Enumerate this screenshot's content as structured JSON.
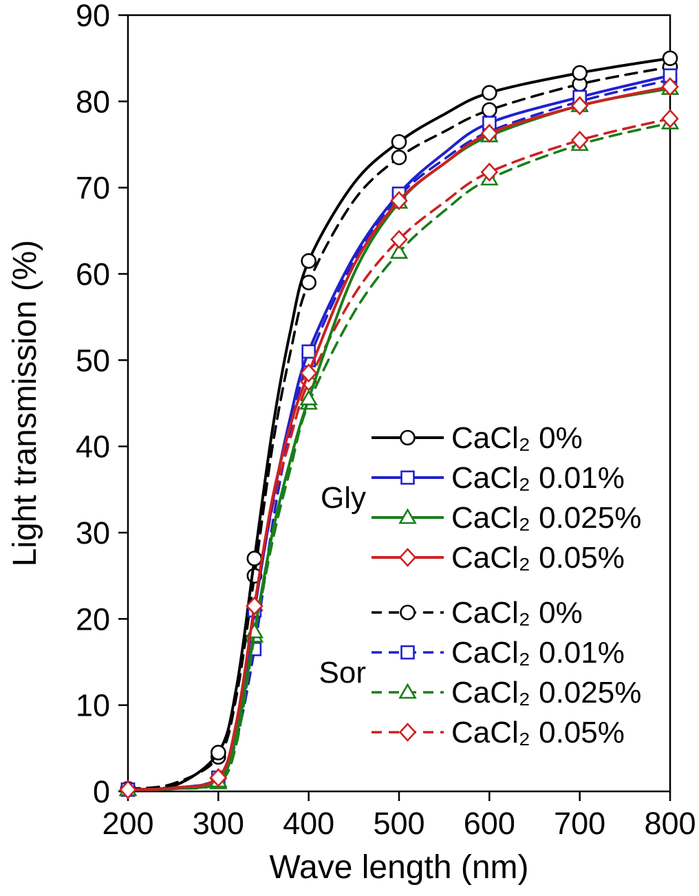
{
  "chart_data": {
    "type": "line",
    "title": "",
    "xlabel": "Wave length (nm)",
    "ylabel": "Light transmission (%)",
    "xlim": [
      200,
      800
    ],
    "ylim": [
      0,
      90
    ],
    "x_ticks": [
      200,
      300,
      400,
      500,
      600,
      700,
      800
    ],
    "y_ticks": [
      0,
      10,
      20,
      30,
      40,
      50,
      60,
      70,
      80,
      90
    ],
    "grid": false,
    "legend_position": "inside-right",
    "x": [
      200,
      250,
      300,
      320,
      340,
      360,
      380,
      400,
      450,
      500,
      550,
      600,
      700,
      800
    ],
    "marker_x": [
      200,
      300,
      340,
      400,
      500,
      600,
      700,
      800
    ],
    "series": [
      {
        "name": "Gly CaCl2 0%",
        "group": "Gly",
        "label": "CaCl₂ 0%",
        "color": "#000000",
        "style": "solid",
        "marker": "circle",
        "values": [
          0.3,
          0.6,
          4.5,
          12,
          27,
          42,
          53.5,
          61.5,
          70.5,
          75.3,
          78.5,
          81,
          83.3,
          85
        ]
      },
      {
        "name": "Gly CaCl2 0.01%",
        "group": "Gly",
        "label": "CaCl₂ 0.01%",
        "color": "#2121cc",
        "style": "solid",
        "marker": "square",
        "values": [
          0.2,
          0.4,
          1.6,
          7.5,
          21,
          33.5,
          43.5,
          51,
          62,
          69.3,
          74,
          77.5,
          80.5,
          83
        ]
      },
      {
        "name": "Gly CaCl2 0.025%",
        "group": "Gly",
        "label": "CaCl₂ 0.025%",
        "color": "#1a7e1a",
        "style": "solid",
        "marker": "triangle",
        "values": [
          0.2,
          0.3,
          1.2,
          6.5,
          18.5,
          30,
          38.5,
          45.5,
          60,
          68.3,
          72.8,
          76,
          79.5,
          81.5
        ]
      },
      {
        "name": "Gly CaCl2 0.05%",
        "group": "Gly",
        "label": "CaCl₂ 0.05%",
        "color": "#cc2222",
        "style": "solid",
        "marker": "diamond",
        "values": [
          0.2,
          0.4,
          1.6,
          8,
          21.5,
          34,
          42.5,
          48.5,
          61,
          68.5,
          72.8,
          76.3,
          79.5,
          81.7
        ]
      },
      {
        "name": "Sor CaCl2 0%",
        "group": "Sor",
        "label": "CaCl₂ 0%",
        "color": "#000000",
        "style": "dashed",
        "marker": "circle",
        "values": [
          0.3,
          0.9,
          4.0,
          11,
          25,
          40,
          51,
          59,
          68.5,
          73.5,
          76.5,
          79,
          82,
          84
        ]
      },
      {
        "name": "Sor CaCl2 0.01%",
        "group": "Sor",
        "label": "CaCl₂ 0.01%",
        "color": "#2121cc",
        "style": "dashed",
        "marker": "square",
        "values": [
          0.2,
          0.4,
          1.5,
          6,
          16.5,
          31,
          42,
          50,
          61.5,
          69,
          73.3,
          76.5,
          80,
          82.5
        ]
      },
      {
        "name": "Sor CaCl2 0.025%",
        "group": "Sor",
        "label": "CaCl₂ 0.025%",
        "color": "#1a7e1a",
        "style": "dashed",
        "marker": "triangle",
        "values": [
          0.2,
          0.3,
          1.0,
          5.5,
          18,
          29,
          37.5,
          45,
          55.5,
          62.5,
          67.3,
          71,
          75,
          77.5
        ]
      },
      {
        "name": "Sor CaCl2 0.05%",
        "group": "Sor",
        "label": "CaCl₂ 0.05%",
        "color": "#cc2222",
        "style": "dashed",
        "marker": "diamond",
        "values": [
          0.2,
          0.4,
          1.5,
          7,
          21,
          33,
          41,
          47.5,
          57.5,
          64,
          68.3,
          71.8,
          75.5,
          78
        ]
      }
    ],
    "legend": {
      "gly_label": "Gly",
      "sor_label": "Sor"
    }
  }
}
